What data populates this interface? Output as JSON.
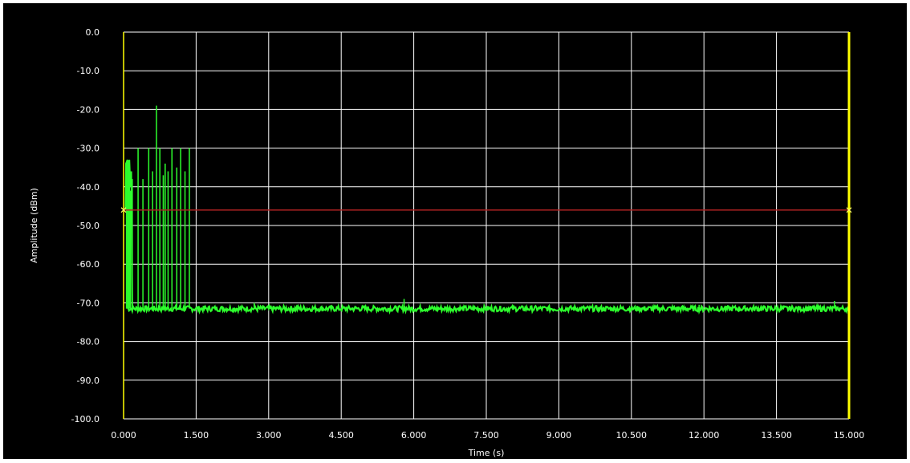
{
  "chart_data": {
    "type": "line",
    "title": "",
    "xlabel": "Time (s)",
    "ylabel": "Amplitude (dBm)",
    "xlim": [
      0,
      15
    ],
    "ylim": [
      -100,
      0
    ],
    "grid": true,
    "x_tick_labels": [
      "0.000",
      "1.500",
      "3.000",
      "4.500",
      "6.000",
      "7.500",
      "9.000",
      "10.500",
      "12.000",
      "13.500",
      "15.000"
    ],
    "y_tick_labels": [
      "0.0",
      "-10.0",
      "-20.0",
      "-30.0",
      "-40.0",
      "-50.0",
      "-60.0",
      "-70.0",
      "-80.0",
      "-90.0",
      "-100.0"
    ],
    "threshold_dbm": -46,
    "noise_floor_dbm": -71.5,
    "markers": [
      {
        "time_s": 0.0
      },
      {
        "time_s": 15.0
      }
    ],
    "burst": [
      {
        "t": 0.06,
        "v": -34
      },
      {
        "t": 0.08,
        "v": -33
      },
      {
        "t": 0.1,
        "v": -34
      },
      {
        "t": 0.12,
        "v": -33
      },
      {
        "t": 0.14,
        "v": -41
      },
      {
        "t": 0.18,
        "v": -38
      },
      {
        "t": 0.3,
        "v": -30
      },
      {
        "t": 0.4,
        "v": -38
      },
      {
        "t": 0.52,
        "v": -30
      },
      {
        "t": 0.6,
        "v": -36
      },
      {
        "t": 0.68,
        "v": -19
      },
      {
        "t": 0.75,
        "v": -30
      },
      {
        "t": 0.82,
        "v": -37
      },
      {
        "t": 0.86,
        "v": -34
      },
      {
        "t": 0.92,
        "v": -36
      },
      {
        "t": 1.0,
        "v": -30
      },
      {
        "t": 1.1,
        "v": -35
      },
      {
        "t": 1.18,
        "v": -30
      },
      {
        "t": 1.27,
        "v": -36
      },
      {
        "t": 1.36,
        "v": -30
      }
    ],
    "noise_spikes": [
      {
        "t": 2.7,
        "v": -70
      },
      {
        "t": 3.6,
        "v": -70.5
      },
      {
        "t": 5.8,
        "v": -69
      },
      {
        "t": 11.9,
        "v": -70.5
      },
      {
        "t": 14.7,
        "v": -69.5
      }
    ]
  }
}
